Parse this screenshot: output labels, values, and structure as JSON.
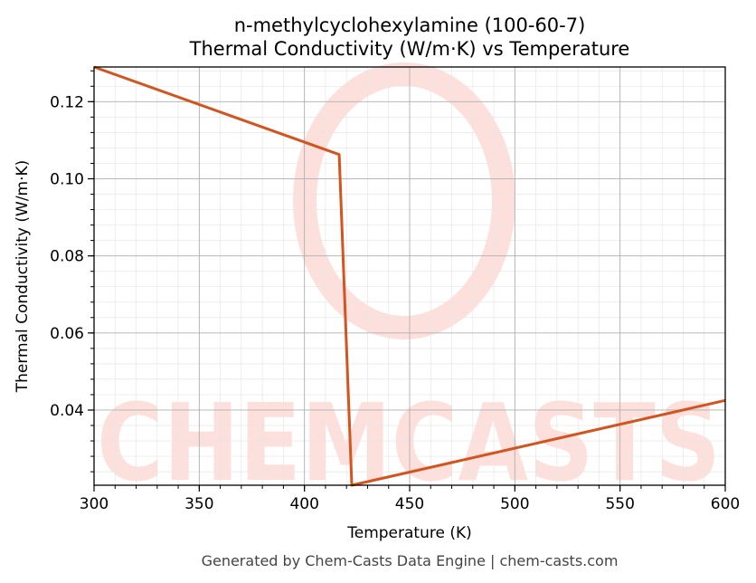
{
  "chart_data": {
    "type": "line",
    "title": "n-methylcyclohexylamine (100-60-7)",
    "subtitle": "Thermal Conductivity (W/m·K) vs Temperature",
    "xlabel": "Temperature (K)",
    "ylabel": "Thermal Conductivity (W/m·K)",
    "xlim": [
      300,
      600
    ],
    "ylim": [
      0.0205,
      0.129
    ],
    "xticks": [
      300,
      350,
      400,
      450,
      500,
      550,
      600
    ],
    "yticks": [
      0.04,
      0.06,
      0.08,
      0.1,
      0.12
    ],
    "xtick_labels": [
      "300",
      "350",
      "400",
      "450",
      "500",
      "550",
      "600"
    ],
    "ytick_labels": [
      "0.04",
      "0.06",
      "0.08",
      "0.10",
      "0.12"
    ],
    "grid": true,
    "series": [
      {
        "color": "#d4541f",
        "x": [
          300,
          416.5,
          422.5,
          600
        ],
        "y": [
          0.129,
          0.1063,
          0.0205,
          0.0425
        ]
      }
    ]
  },
  "watermark": {
    "text": "CHEMCASTS",
    "color": "#fde0dc"
  },
  "footer": "Generated by Chem-Casts Data Engine | chem-casts.com"
}
